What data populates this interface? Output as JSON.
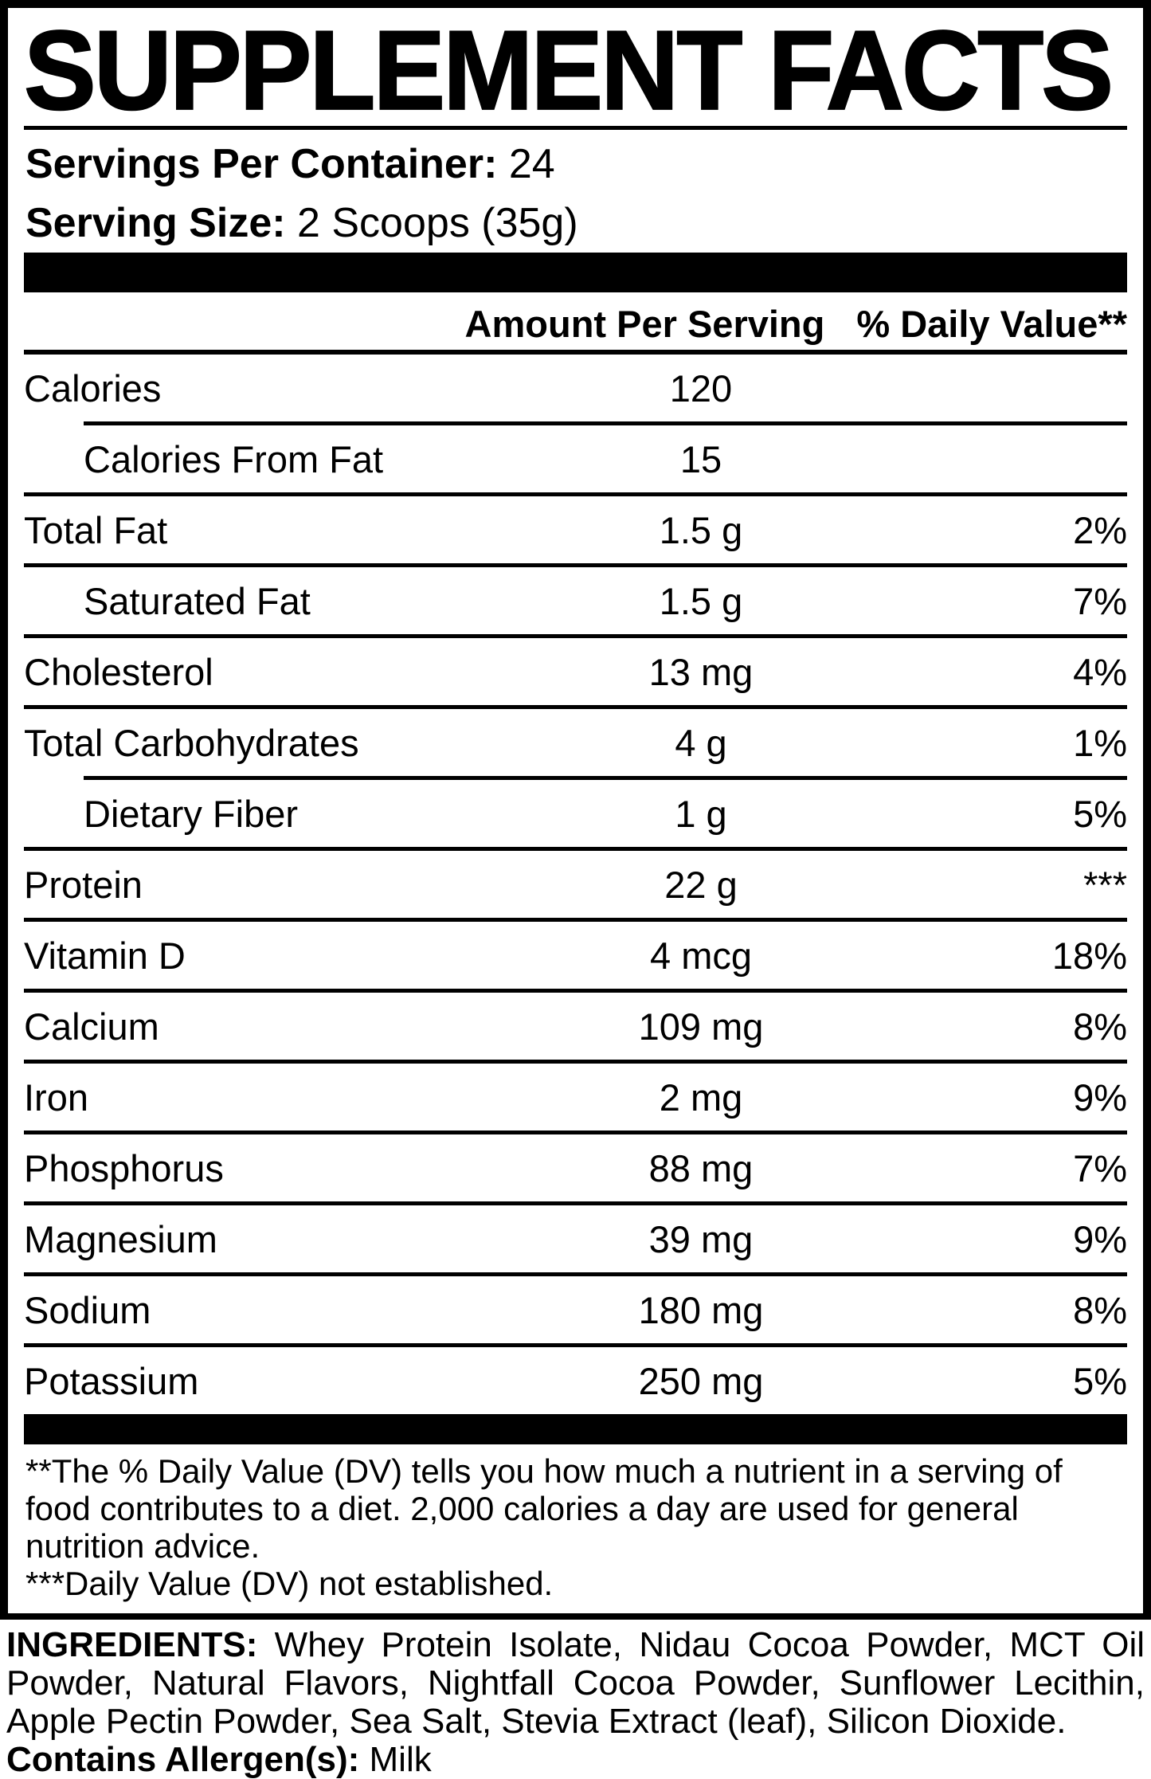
{
  "title": "SUPPLEMENT FACTS",
  "serving_info": {
    "servings_label": "Servings Per Container:",
    "servings_value": " 24",
    "size_label": "Serving Size:",
    "size_value": " 2 Scoops (35g)"
  },
  "table": {
    "amount_header": "Amount Per Serving",
    "dv_header": "% Daily Value**",
    "rows": [
      {
        "name": "Calories",
        "amount": "120",
        "dv": ""
      },
      {
        "name": "Calories From Fat",
        "amount": "15",
        "dv": ""
      },
      {
        "name": "Total Fat",
        "amount": "1.5 g",
        "dv": "2%"
      },
      {
        "name": "Saturated Fat",
        "amount": "1.5 g",
        "dv": "7%"
      },
      {
        "name": "Cholesterol",
        "amount": "13 mg",
        "dv": "4%"
      },
      {
        "name": "Total Carbohydrates",
        "amount": "4 g",
        "dv": "1%"
      },
      {
        "name": "Dietary Fiber",
        "amount": "1 g",
        "dv": "5%"
      },
      {
        "name": "Protein",
        "amount": "22 g",
        "dv": "***"
      },
      {
        "name": "Vitamin D",
        "amount": "4 mcg",
        "dv": "18%"
      },
      {
        "name": "Calcium",
        "amount": "109 mg",
        "dv": "8%"
      },
      {
        "name": "Iron",
        "amount": "2 mg",
        "dv": "9%"
      },
      {
        "name": "Phosphorus",
        "amount": "88 mg",
        "dv": "7%"
      },
      {
        "name": "Magnesium",
        "amount": "39 mg",
        "dv": "9%"
      },
      {
        "name": "Sodium",
        "amount": "180 mg",
        "dv": "8%"
      },
      {
        "name": "Potassium",
        "amount": "250 mg",
        "dv": "5%"
      }
    ]
  },
  "footnotes": {
    "daily_value_note": "**The % Daily Value (DV) tells you how much a nutrient in a serving of food contributes to a diet. 2,000 calories a day are used for general nutrition advice.",
    "not_established_note": "***Daily Value (DV) not established."
  },
  "ingredients": {
    "label": "INGREDIENTS:",
    "text": " Whey Protein Isolate, Nidau Cocoa Powder, MCT Oil Powder, Natural Flavors, Nightfall Cocoa Powder, Sunflower Lecithin, Apple Pectin Powder, Sea Salt, Stevia Extract (leaf), Silicon Dioxide.",
    "allergen_label": "Contains Allergen(s):",
    "allergen_value": " Milk"
  },
  "colors": {
    "text": "#000000",
    "background": "#ffffff"
  }
}
